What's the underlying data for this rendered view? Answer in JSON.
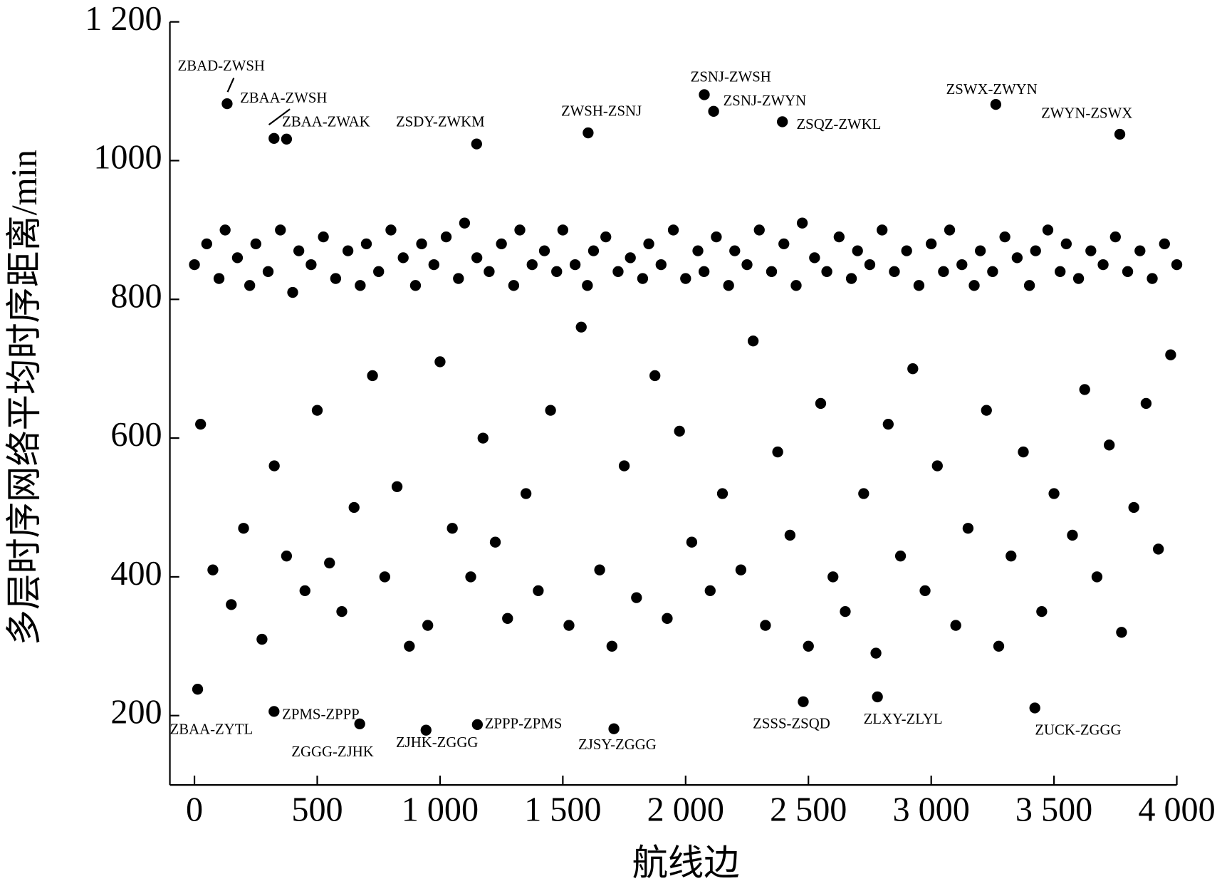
{
  "chart_data": {
    "type": "scatter",
    "x_label": "航线边",
    "y_label": "多层时序网络平均时序距离/min",
    "xlim": [
      -100,
      4000
    ],
    "ylim": [
      100,
      1200
    ],
    "xticks": [
      0,
      500,
      {
        "value": 1000,
        "label": "1 000"
      },
      {
        "value": 1500,
        "label": "1 500"
      },
      {
        "value": 2000,
        "label": "2 000"
      },
      {
        "value": 2500,
        "label": "2 500"
      },
      {
        "value": 3000,
        "label": "3 000"
      },
      {
        "value": 3500,
        "label": "3 500"
      },
      {
        "value": 4000,
        "label": "4 000"
      }
    ],
    "yticks": [
      200,
      400,
      600,
      800,
      1000,
      {
        "value": 1200,
        "label": "1 200"
      }
    ],
    "grid": false,
    "color": "#000000",
    "x": [
      0,
      25,
      50,
      75,
      100,
      125,
      150,
      175,
      200,
      225,
      250,
      275,
      300,
      325,
      350,
      375,
      400,
      425,
      450,
      475,
      500,
      525,
      550,
      575,
      600,
      625,
      650,
      675,
      700,
      725,
      750,
      775,
      800,
      825,
      850,
      875,
      900,
      925,
      950,
      975,
      1000,
      1025,
      1050,
      1075,
      1100,
      1125,
      1150,
      1175,
      1200,
      1225,
      1250,
      1275,
      1300,
      1325,
      1350,
      1375,
      1400,
      1425,
      1450,
      1475,
      1500,
      1525,
      1550,
      1575,
      1600,
      1625,
      1650,
      1675,
      1700,
      1725,
      1750,
      1775,
      1800,
      1825,
      1850,
      1875,
      1900,
      1925,
      1950,
      1975,
      2000,
      2025,
      2050,
      2075,
      2100,
      2125,
      2150,
      2175,
      2200,
      2225,
      2250,
      2275,
      2300,
      2325,
      2350,
      2375,
      2400,
      2425,
      2450,
      2475,
      2500,
      2525,
      2550,
      2575,
      2600,
      2625,
      2650,
      2675,
      2700,
      2725,
      2750,
      2775,
      2800,
      2825,
      2850,
      2875,
      2900,
      2925,
      2950,
      2975,
      3000,
      3025,
      3050,
      3075,
      3100,
      3125,
      3150,
      3175,
      3200,
      3225,
      3250,
      3275,
      3300,
      3325,
      3350,
      3375,
      3400,
      3425,
      3450,
      3475,
      3500,
      3525,
      3550,
      3575,
      3600,
      3625,
      3650,
      3675,
      3700,
      3725,
      3750,
      3775,
      3800,
      3825,
      3850,
      3875,
      3900,
      3925,
      3950,
      3975,
      4000
    ],
    "y": [
      850,
      620,
      880,
      410,
      830,
      900,
      360,
      860,
      470,
      820,
      880,
      310,
      840,
      560,
      900,
      430,
      810,
      870,
      380,
      850,
      640,
      890,
      420,
      830,
      350,
      870,
      500,
      820,
      880,
      690,
      840,
      400,
      900,
      530,
      860,
      300,
      820,
      880,
      330,
      850,
      710,
      890,
      470,
      830,
      910,
      400,
      860,
      600,
      840,
      450,
      880,
      340,
      820,
      900,
      520,
      850,
      380,
      870,
      640,
      840,
      900,
      330,
      850,
      760,
      820,
      870,
      410,
      890,
      300,
      840,
      560,
      860,
      370,
      830,
      880,
      690,
      850,
      340,
      900,
      610,
      830,
      450,
      870,
      840,
      380,
      890,
      520,
      820,
      870,
      410,
      850,
      740,
      900,
      330,
      840,
      580,
      880,
      460,
      820,
      910,
      300,
      860,
      650,
      840,
      400,
      890,
      350,
      830,
      870,
      520,
      850,
      290,
      900,
      620,
      840,
      430,
      870,
      700,
      820,
      380,
      880,
      560,
      840,
      900,
      330,
      850,
      470,
      820,
      870,
      640,
      840,
      300,
      890,
      430,
      860,
      580,
      820,
      870,
      350,
      900,
      520,
      840,
      880,
      460,
      830,
      670,
      870,
      400,
      850,
      590,
      890,
      320,
      840,
      500,
      870,
      650,
      830,
      440,
      880,
      720,
      850
    ],
    "annotations": [
      {
        "text": "ZBAD-ZWSH",
        "x": 133,
        "y": 1082
      },
      {
        "text": "ZBAA-ZWSH",
        "x": 324,
        "y": 1032
      },
      {
        "text": "ZBAA-ZWAK",
        "x": 375,
        "y": 1031
      },
      {
        "text": "ZSDY-ZWKM",
        "x": 1149,
        "y": 1024
      },
      {
        "text": "ZWSH-ZSNJ",
        "x": 1603,
        "y": 1040
      },
      {
        "text": "ZSNJ-ZWSH",
        "x": 2076,
        "y": 1095
      },
      {
        "text": "ZSNJ-ZWYN",
        "x": 2114,
        "y": 1071
      },
      {
        "text": "ZSQZ-ZWKL",
        "x": 2394,
        "y": 1056
      },
      {
        "text": "ZSWX-ZWYN",
        "x": 3263,
        "y": 1081
      },
      {
        "text": "ZWYN-ZSWX",
        "x": 3768,
        "y": 1038
      },
      {
        "text": "ZBAA-ZYTL",
        "x": 13,
        "y": 238
      },
      {
        "text": "ZPMS-ZPPP",
        "x": 324,
        "y": 206
      },
      {
        "text": "ZGGG-ZJHK",
        "x": 673,
        "y": 188
      },
      {
        "text": "ZJHK-ZGGG",
        "x": 943,
        "y": 179
      },
      {
        "text": "ZPPP-ZPMS",
        "x": 1152,
        "y": 187
      },
      {
        "text": "ZJSY-ZGGG",
        "x": 1708,
        "y": 181
      },
      {
        "text": "ZSSS-ZSQD",
        "x": 2479,
        "y": 220
      },
      {
        "text": "ZLXY-ZLYL",
        "x": 2781,
        "y": 227
      },
      {
        "text": "ZUCK-ZGGG",
        "x": 3422,
        "y": 211
      }
    ]
  }
}
